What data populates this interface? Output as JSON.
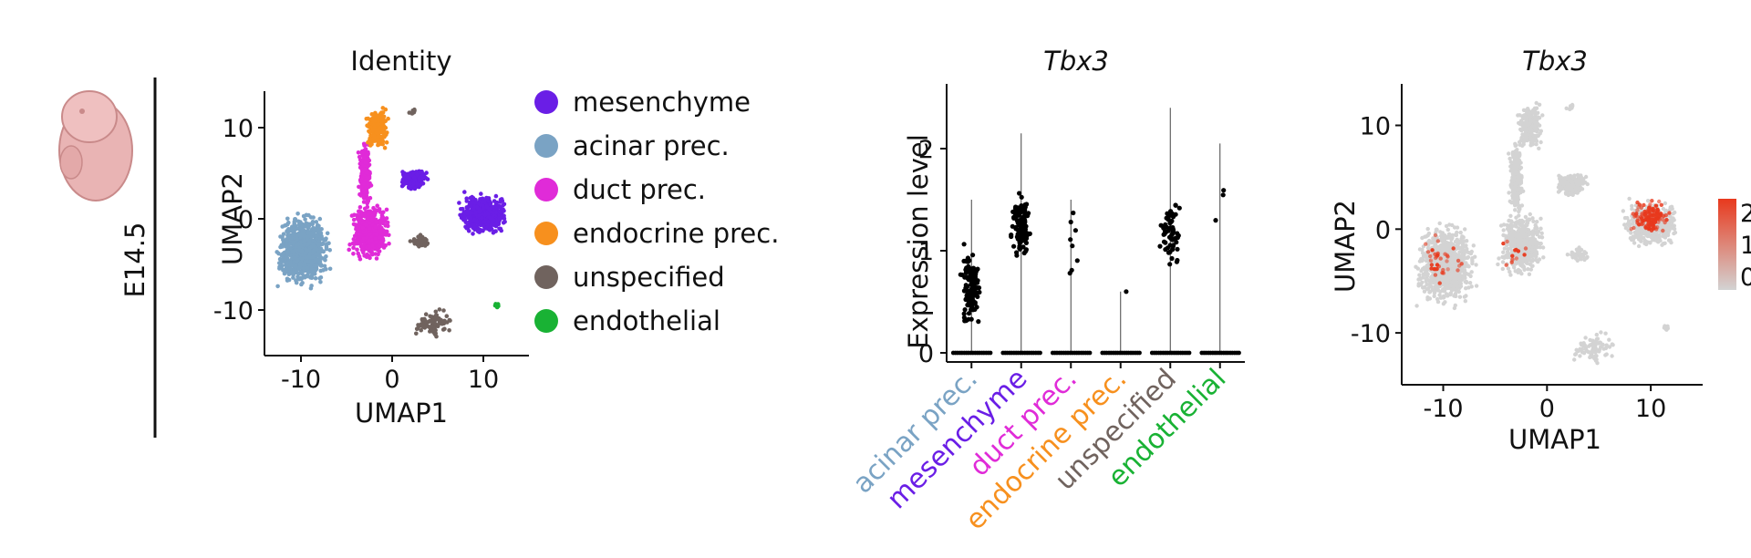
{
  "stage_label": "E14.5",
  "chart_data": [
    {
      "id": "identity",
      "type": "scatter",
      "title": "Identity",
      "xlabel": "UMAP1",
      "ylabel": "UMAP2",
      "xticks": [
        "-10",
        "0",
        "10"
      ],
      "yticks": [
        "10",
        "0",
        "-10"
      ],
      "xlim": [
        -14,
        15
      ],
      "ylim": [
        -15,
        14
      ],
      "legend_position": "right",
      "legend": [
        {
          "name": "mesenchyme",
          "color": "#6a1ee6"
        },
        {
          "name": "acinar prec.",
          "color": "#7aa3c4"
        },
        {
          "name": "duct prec.",
          "color": "#e02bd8"
        },
        {
          "name": "endocrine prec.",
          "color": "#f7901e"
        },
        {
          "name": "unspecified",
          "color": "#70635e"
        },
        {
          "name": "endothelial",
          "color": "#19b234"
        }
      ],
      "clusters": [
        {
          "name": "acinar prec.",
          "cx": -9.8,
          "cy": -3.5,
          "rx": 3.3,
          "ry": 4.5,
          "n": 900
        },
        {
          "name": "duct prec.",
          "cx": -2.4,
          "cy": -1.4,
          "rx": 2.6,
          "ry": 3.6,
          "n": 500
        },
        {
          "name": "duct prec.",
          "cx": -3.0,
          "cy": 5.0,
          "rx": 0.8,
          "ry": 4.2,
          "n": 220
        },
        {
          "name": "endocrine prec.",
          "cx": -1.6,
          "cy": 10.0,
          "rx": 1.4,
          "ry": 2.6,
          "n": 260
        },
        {
          "name": "mesenchyme",
          "cx": 2.4,
          "cy": 4.3,
          "rx": 1.8,
          "ry": 1.3,
          "n": 220
        },
        {
          "name": "mesenchyme",
          "cx": 10.0,
          "cy": 0.5,
          "rx": 2.9,
          "ry": 2.6,
          "n": 500
        },
        {
          "name": "unspecified",
          "cx": 4.5,
          "cy": -11.5,
          "rx": 2.4,
          "ry": 1.9,
          "n": 80
        },
        {
          "name": "unspecified",
          "cx": 3.0,
          "cy": -2.4,
          "rx": 1.4,
          "ry": 0.8,
          "n": 40
        },
        {
          "name": "unspecified",
          "cx": 2.2,
          "cy": 11.7,
          "rx": 0.5,
          "ry": 0.5,
          "n": 10
        },
        {
          "name": "endothelial",
          "cx": 11.5,
          "cy": -9.5,
          "rx": 0.4,
          "ry": 0.4,
          "n": 10
        }
      ]
    },
    {
      "id": "violin",
      "type": "scatter",
      "title": "Tbx3",
      "ylabel": "Expression level",
      "yticks": [
        "0",
        "1",
        "2"
      ],
      "ylim": [
        0,
        2.5
      ],
      "categories": [
        "acinar prec.",
        "mesenchyme",
        "duct prec.",
        "endocrine prec.",
        "unspecified",
        "endothelial"
      ],
      "category_colors": [
        "#7aa3c4",
        "#6a1ee6",
        "#e02bd8",
        "#f7901e",
        "#70635e",
        "#19b234"
      ],
      "max_values": [
        1.5,
        2.15,
        1.5,
        0.6,
        2.4,
        2.05
      ],
      "nonzero_center": [
        0.65,
        1.25,
        1.1,
        0.6,
        1.2,
        1.5
      ],
      "nonzero_counts": [
        110,
        120,
        8,
        1,
        60,
        3
      ]
    },
    {
      "id": "feature",
      "type": "scatter",
      "title": "Tbx3",
      "xlabel": "UMAP1",
      "ylabel": "UMAP2",
      "xticks": [
        "-10",
        "0",
        "10"
      ],
      "yticks": [
        "10",
        "0",
        "-10"
      ],
      "colorbar_ticks": [
        "2",
        "1",
        "0"
      ],
      "base_color": "#d3d3d3",
      "high_color": "#e8391d",
      "expressing_clusters": [
        {
          "cx": 10.0,
          "cy": 1.2,
          "rx": 2.2,
          "ry": 2.0,
          "n": 140
        },
        {
          "cx": -10.0,
          "cy": -3.0,
          "rx": 2.5,
          "ry": 3.5,
          "n": 35
        },
        {
          "cx": -3.0,
          "cy": -2.0,
          "rx": 2.0,
          "ry": 2.5,
          "n": 12
        }
      ]
    }
  ]
}
